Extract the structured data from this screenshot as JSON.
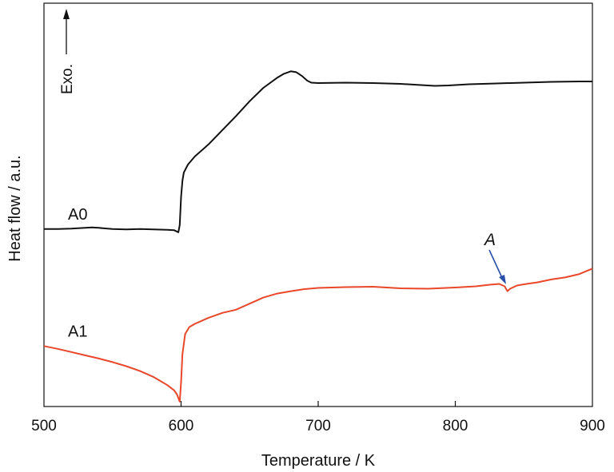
{
  "chart_data": {
    "type": "line",
    "title": "",
    "xlabel": "Temperature / K",
    "ylabel": "Heat flow / a.u.",
    "xlim": [
      500,
      900
    ],
    "ylim": [
      0,
      1
    ],
    "x_ticks": [
      "500",
      "600",
      "700",
      "800",
      "900"
    ],
    "y_ticks": [],
    "grid": false,
    "exo_label": "Exo.",
    "annotation": {
      "text": "A",
      "x": 838,
      "y": 0.295,
      "color": "#2a4fa8"
    },
    "series": [
      {
        "name": "A0",
        "color": "#111111",
        "points": [
          [
            500,
            0.44
          ],
          [
            510,
            0.44
          ],
          [
            520,
            0.441
          ],
          [
            530,
            0.443
          ],
          [
            535,
            0.444
          ],
          [
            540,
            0.443
          ],
          [
            550,
            0.44
          ],
          [
            560,
            0.439
          ],
          [
            570,
            0.44
          ],
          [
            580,
            0.439
          ],
          [
            590,
            0.438
          ],
          [
            595,
            0.437
          ],
          [
            598,
            0.432
          ],
          [
            599,
            0.45
          ],
          [
            600,
            0.52
          ],
          [
            601,
            0.56
          ],
          [
            602,
            0.58
          ],
          [
            605,
            0.6
          ],
          [
            610,
            0.62
          ],
          [
            620,
            0.65
          ],
          [
            630,
            0.685
          ],
          [
            640,
            0.72
          ],
          [
            650,
            0.757
          ],
          [
            660,
            0.79
          ],
          [
            670,
            0.815
          ],
          [
            675,
            0.825
          ],
          [
            680,
            0.831
          ],
          [
            684,
            0.829
          ],
          [
            688,
            0.82
          ],
          [
            692,
            0.808
          ],
          [
            695,
            0.803
          ],
          [
            700,
            0.802
          ],
          [
            720,
            0.803
          ],
          [
            740,
            0.802
          ],
          [
            760,
            0.8
          ],
          [
            775,
            0.797
          ],
          [
            785,
            0.795
          ],
          [
            795,
            0.796
          ],
          [
            810,
            0.799
          ],
          [
            830,
            0.801
          ],
          [
            850,
            0.803
          ],
          [
            870,
            0.805
          ],
          [
            890,
            0.806
          ],
          [
            900,
            0.806
          ]
        ]
      },
      {
        "name": "A1",
        "color": "#e8472a",
        "points": [
          [
            500,
            0.15
          ],
          [
            510,
            0.143
          ],
          [
            520,
            0.135
          ],
          [
            530,
            0.127
          ],
          [
            540,
            0.119
          ],
          [
            550,
            0.11
          ],
          [
            560,
            0.1
          ],
          [
            570,
            0.088
          ],
          [
            580,
            0.073
          ],
          [
            590,
            0.053
          ],
          [
            595,
            0.04
          ],
          [
            597,
            0.03
          ],
          [
            599,
            0.012
          ],
          [
            600,
            0.06
          ],
          [
            601,
            0.13
          ],
          [
            603,
            0.18
          ],
          [
            606,
            0.197
          ],
          [
            610,
            0.205
          ],
          [
            620,
            0.22
          ],
          [
            630,
            0.232
          ],
          [
            640,
            0.24
          ],
          [
            650,
            0.255
          ],
          [
            660,
            0.27
          ],
          [
            670,
            0.28
          ],
          [
            680,
            0.286
          ],
          [
            690,
            0.291
          ],
          [
            700,
            0.294
          ],
          [
            720,
            0.296
          ],
          [
            740,
            0.297
          ],
          [
            760,
            0.293
          ],
          [
            780,
            0.292
          ],
          [
            800,
            0.295
          ],
          [
            815,
            0.298
          ],
          [
            825,
            0.302
          ],
          [
            832,
            0.304
          ],
          [
            836,
            0.298
          ],
          [
            838,
            0.286
          ],
          [
            840,
            0.292
          ],
          [
            845,
            0.3
          ],
          [
            850,
            0.303
          ],
          [
            860,
            0.308
          ],
          [
            870,
            0.315
          ],
          [
            880,
            0.32
          ],
          [
            890,
            0.328
          ],
          [
            900,
            0.342
          ]
        ]
      }
    ]
  }
}
